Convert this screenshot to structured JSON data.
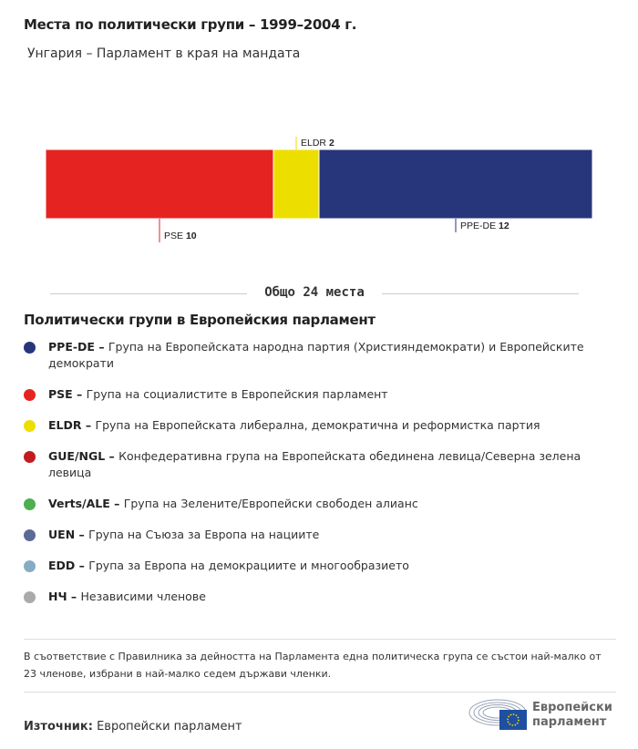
{
  "title": "Места по политически групи – 1999–2004 г.",
  "subtitle": "Унгария – Парламент в края на мандата",
  "chart_data": {
    "type": "bar",
    "orientation": "stacked-horizontal",
    "categories": [
      "PSE",
      "ELDR",
      "PPE-DE"
    ],
    "values": [
      10,
      2,
      12
    ],
    "colors": [
      "#e52421",
      "#ecdf00",
      "#27367b"
    ],
    "total_label": "Общо 24 места"
  },
  "legend": {
    "title": "Политически групи в Европейския парламент",
    "items": [
      {
        "abbr": "PPE-DE",
        "desc": "Група на Европейската народна партия (Християндемократи) и Европейските демократи",
        "color": "#27367b"
      },
      {
        "abbr": "PSE",
        "desc": "Група на социалистите в Европейския парламент",
        "color": "#e52421"
      },
      {
        "abbr": "ELDR",
        "desc": "Група на Европейската либерална, демократична и реформистка партия",
        "color": "#ecdf00"
      },
      {
        "abbr": "GUE/NGL",
        "desc": "Конфедеративна група на Европейската обединена левица/Северна зелена левица",
        "color": "#c11c1f"
      },
      {
        "abbr": "Verts/ALE",
        "desc": "Група на Зелените/Европейски свободен алианс",
        "color": "#4caf50"
      },
      {
        "abbr": "UEN",
        "desc": "Група на Съюза за Европа на нациите",
        "color": "#5a6b96"
      },
      {
        "abbr": "EDD",
        "desc": "Група за Европа на демокрациите и многообразието",
        "color": "#86acc4"
      },
      {
        "abbr": "НЧ",
        "desc": "Независими членове",
        "color": "#aaaaaa"
      }
    ]
  },
  "note": "В съответствие с Правилника за дейността на Парламента една политическа група се състои най-малко от 23 членове, избрани в най-малко седем държави членки.",
  "source": {
    "label": "Източник:",
    "value": "Европейски парламент"
  },
  "logo": {
    "line1": "Европейски",
    "line2": "парламент"
  }
}
